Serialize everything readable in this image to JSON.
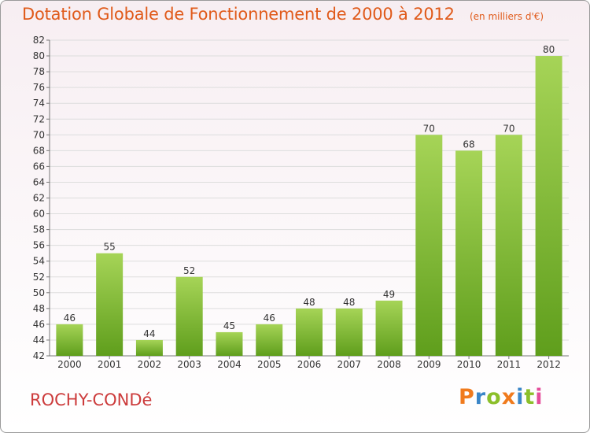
{
  "header": {
    "title": "Dotation Globale de Fonctionnement de 2000 à 2012",
    "unit": "(en milliers d'€)"
  },
  "commune": "ROCHY-CONDé",
  "logo": {
    "text": "Proxiti",
    "colors": [
      "#f07b1d",
      "#3a86c8",
      "#8bbf2a",
      "#f07b1d",
      "#3a86c8",
      "#8bbf2a",
      "#e44d9b"
    ]
  },
  "colors": {
    "bar_light": "#a6d457",
    "bar_dark": "#5f9e1c",
    "grid": "#dddddd",
    "axis": "#777777",
    "label": "#333333"
  },
  "chart_data": {
    "type": "bar",
    "title": "Dotation Globale de Fonctionnement de 2000 à 2012",
    "categories": [
      "2000",
      "2001",
      "2002",
      "2003",
      "2004",
      "2005",
      "2006",
      "2007",
      "2008",
      "2009",
      "2010",
      "2011",
      "2012"
    ],
    "values": [
      46,
      55,
      44,
      52,
      45,
      46,
      48,
      48,
      49,
      70,
      68,
      70,
      80
    ],
    "ylim": [
      42,
      82
    ],
    "yticks": [
      42,
      44,
      46,
      48,
      50,
      52,
      54,
      56,
      58,
      60,
      62,
      64,
      66,
      68,
      70,
      72,
      74,
      76,
      78,
      80,
      82
    ],
    "grid": true,
    "xlabel": "",
    "ylabel": ""
  }
}
